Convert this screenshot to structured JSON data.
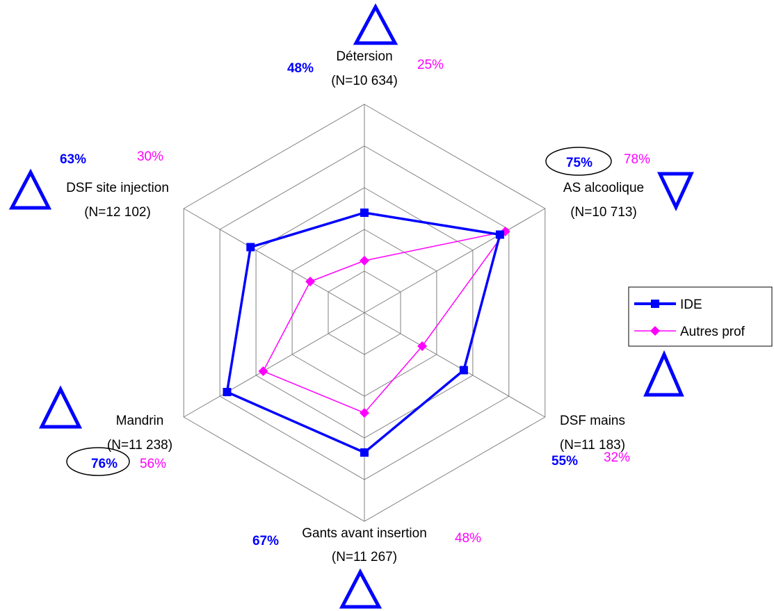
{
  "chart_data": {
    "type": "radar",
    "axes": [
      {
        "label": "Détersion",
        "n": "(N=10 634)"
      },
      {
        "label": "AS alcoolique",
        "n": "(N=10 713)"
      },
      {
        "label": "DSF mains",
        "n": "(N=11 183)"
      },
      {
        "label": "Gants avant insertion",
        "n": "(N=11 267)"
      },
      {
        "label": "Mandrin",
        "n": "(N=11 238)"
      },
      {
        "label": "DSF site injection",
        "n": "(N=12 102)"
      }
    ],
    "series": [
      {
        "name": "IDE",
        "values": [
          48,
          75,
          55,
          67,
          76,
          63
        ],
        "labels": [
          "48%",
          "75%",
          "55%",
          "67%",
          "76%",
          "63%"
        ],
        "color": "#0000ff",
        "marker": "square"
      },
      {
        "name": "Autres prof",
        "values": [
          25,
          78,
          32,
          48,
          56,
          30
        ],
        "labels": [
          "25%",
          "78%",
          "32%",
          "48%",
          "56%",
          "30%"
        ],
        "color": "#ff00ff",
        "marker": "diamond"
      }
    ],
    "rmax": 100,
    "gridlines": 5,
    "trend_markers": [
      "up",
      "down",
      "up",
      "up",
      "up",
      "up"
    ],
    "highlighted_axes": [
      1,
      4
    ],
    "legend_position": "right"
  }
}
